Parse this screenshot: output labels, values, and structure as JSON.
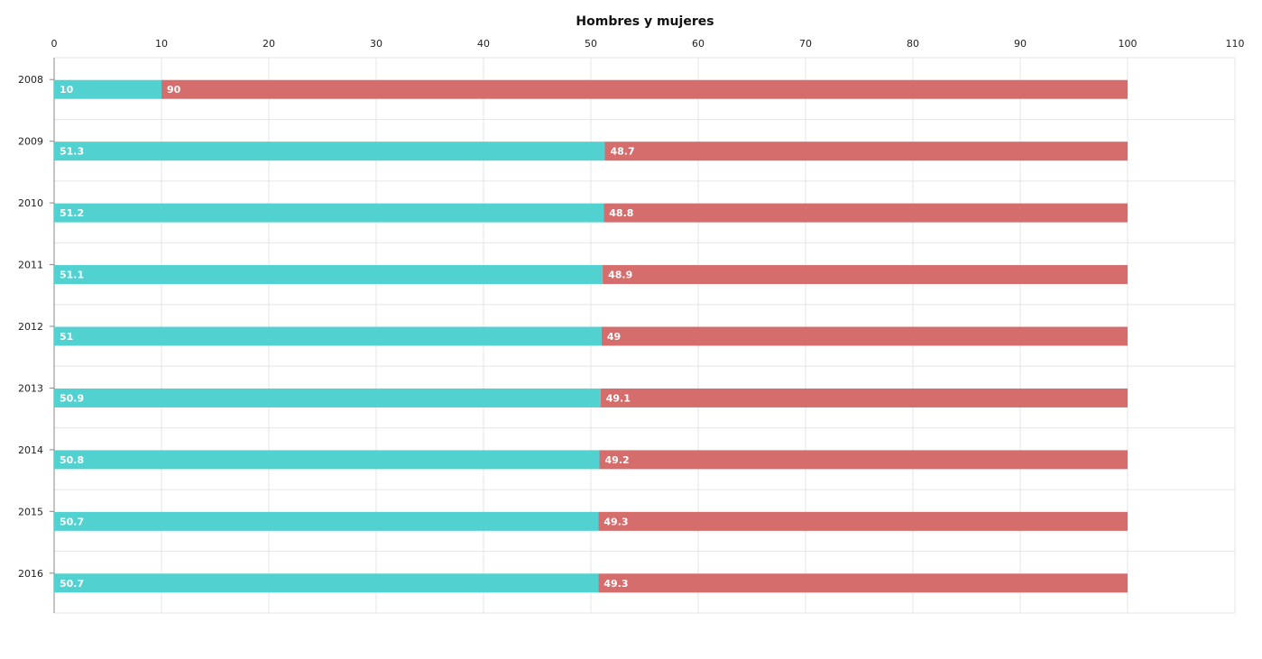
{
  "chart_data": {
    "type": "bar",
    "orientation": "horizontal",
    "stacked": true,
    "title": "Hombres y mujeres",
    "xlabel": "",
    "ylabel": "",
    "xlim": [
      0,
      110
    ],
    "x_ticks": [
      0,
      10,
      20,
      30,
      40,
      50,
      60,
      70,
      80,
      90,
      100,
      110
    ],
    "x_axis_position": "top",
    "grid": true,
    "legend": "none",
    "categories": [
      "2008",
      "2009",
      "2010",
      "2011",
      "2012",
      "2013",
      "2014",
      "2015",
      "2016"
    ],
    "series": [
      {
        "color": "#52d1d1",
        "values": [
          10,
          51.3,
          51.2,
          51.1,
          51,
          50.9,
          50.8,
          50.7,
          50.7
        ]
      },
      {
        "color": "#d66d6d",
        "values": [
          90,
          48.7,
          48.8,
          48.9,
          49,
          49.1,
          49.2,
          49.3,
          49.3
        ]
      }
    ]
  }
}
